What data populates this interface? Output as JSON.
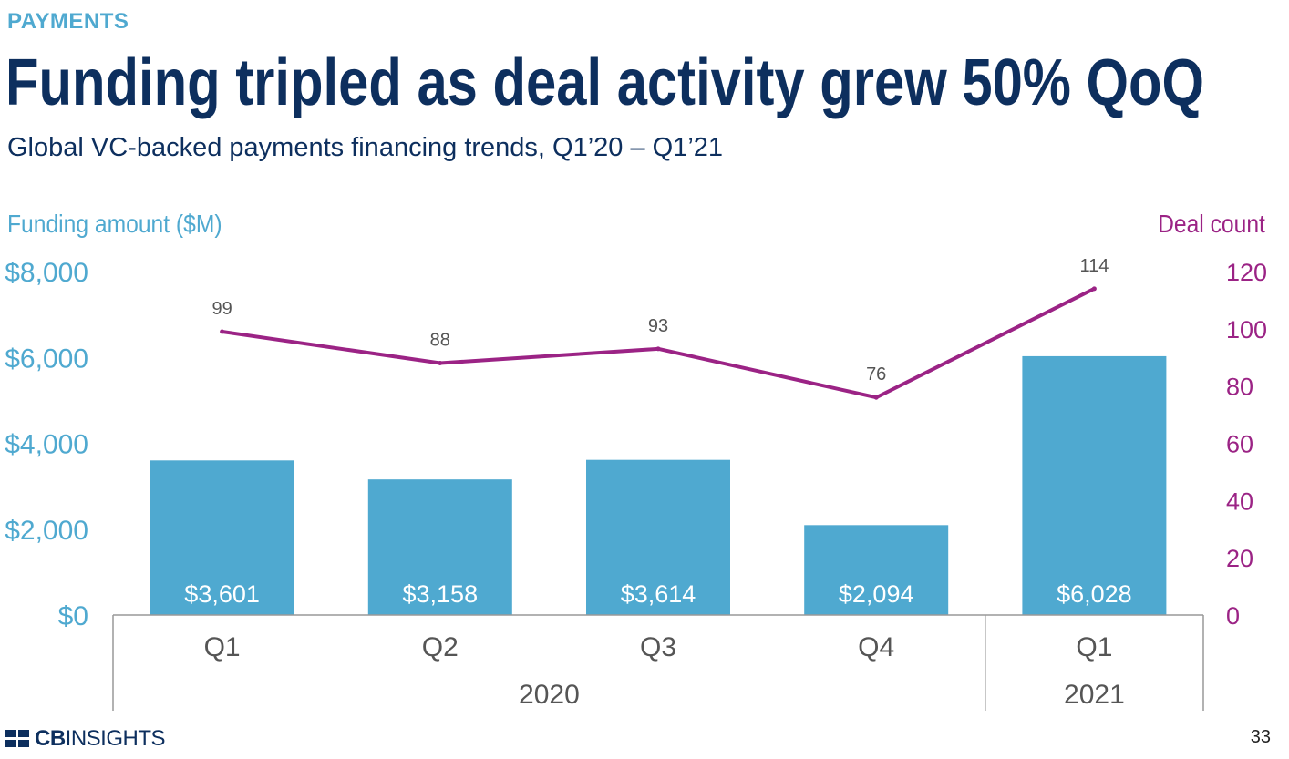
{
  "header": {
    "section": "PAYMENTS",
    "title": "Funding tripled as deal activity grew 50% QoQ",
    "subtitle": "Global VC-backed payments financing trends, Q1’20 – Q1’21"
  },
  "footer": {
    "logo_bold": "CB",
    "logo_rest": "INSIGHTS",
    "page_number": "33"
  },
  "colors": {
    "bar": "#4fa9d0",
    "line": "#9b2385",
    "title": "#0d2f5e",
    "axis_text": "#555555"
  },
  "chart_data": {
    "type": "bar",
    "categories": [
      "Q1",
      "Q2",
      "Q3",
      "Q4",
      "Q1"
    ],
    "groups": [
      {
        "label": "2020",
        "count": 4
      },
      {
        "label": "2021",
        "count": 1
      }
    ],
    "ylabel": "Funding amount ($M)",
    "y2label": "Deal count",
    "ylim": [
      0,
      8000
    ],
    "y2lim": [
      0,
      120
    ],
    "yticks": [
      "$0",
      "$2,000",
      "$4,000",
      "$6,000",
      "$8,000"
    ],
    "y2ticks": [
      "0",
      "20",
      "40",
      "60",
      "80",
      "100",
      "120"
    ],
    "series": [
      {
        "type": "bar",
        "axis": "left",
        "values": [
          3601,
          3158,
          3614,
          2094,
          6028
        ],
        "labels": [
          "$3,601",
          "$3,158",
          "$3,614",
          "$2,094",
          "$6,028"
        ]
      },
      {
        "type": "line",
        "axis": "right",
        "values": [
          99,
          88,
          93,
          76,
          114
        ],
        "labels": [
          "99",
          "88",
          "93",
          "76",
          "114"
        ]
      }
    ]
  }
}
